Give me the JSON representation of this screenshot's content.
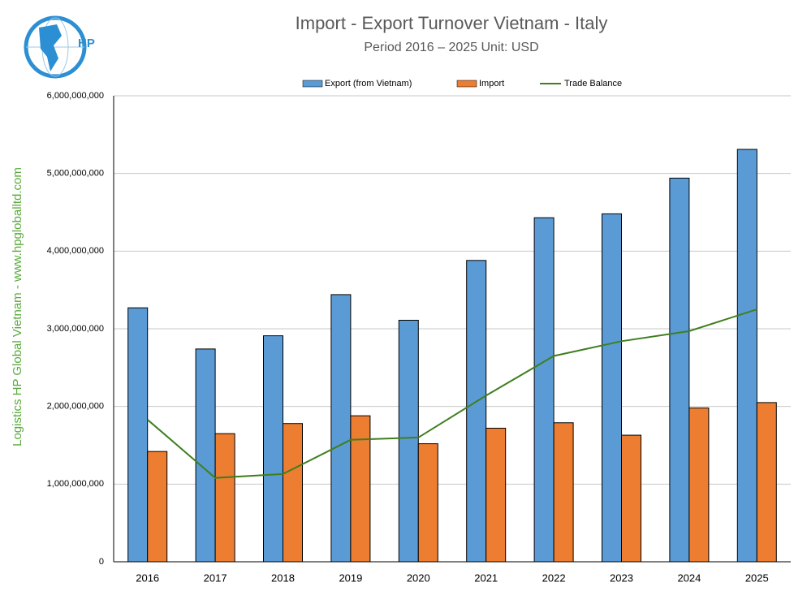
{
  "chart_data": {
    "type": "bar",
    "title": "Import - Export Turnover Vietnam - Italy",
    "subtitle": "Period 2016 – 2025  Unit: USD",
    "side_text": "Logistics HP Global Vietnam - www.hpgloballtd.com",
    "logo_text": "HP",
    "categories": [
      "2016",
      "2017",
      "2018",
      "2019",
      "2020",
      "2021",
      "2022",
      "2023",
      "2024",
      "2025"
    ],
    "series": [
      {
        "name": "Export (from Vietnam)",
        "type": "bar",
        "color": "#5b9bd5",
        "values": [
          3270000000,
          2740000000,
          2910000000,
          3440000000,
          3110000000,
          3880000000,
          4430000000,
          4480000000,
          4940000000,
          5310000000
        ]
      },
      {
        "name": "Import",
        "type": "bar",
        "color": "#ed7d31",
        "values": [
          1420000000,
          1650000000,
          1780000000,
          1880000000,
          1520000000,
          1720000000,
          1790000000,
          1630000000,
          1980000000,
          2050000000
        ]
      },
      {
        "name": "Trade Balance",
        "type": "line",
        "color": "#3f7f1f",
        "values": [
          1830000000,
          1080000000,
          1130000000,
          1570000000,
          1600000000,
          2140000000,
          2650000000,
          2840000000,
          2970000000,
          3250000000
        ]
      }
    ],
    "ylim": [
      0,
      6000000000
    ],
    "yticks": [
      0,
      {
        "value": 1000000000,
        "label": "1,000,000,000"
      },
      {
        "value": 2000000000,
        "label": "2,000,000,000"
      },
      {
        "value": 3000000000,
        "label": "3,000,000,000"
      },
      {
        "value": 4000000000,
        "label": "4,000,000,000"
      },
      {
        "value": 5000000000,
        "label": "5,000,000,000"
      },
      {
        "value": 6000000000,
        "label": "6,000,000,000"
      }
    ],
    "grid": true,
    "legend": "top"
  }
}
